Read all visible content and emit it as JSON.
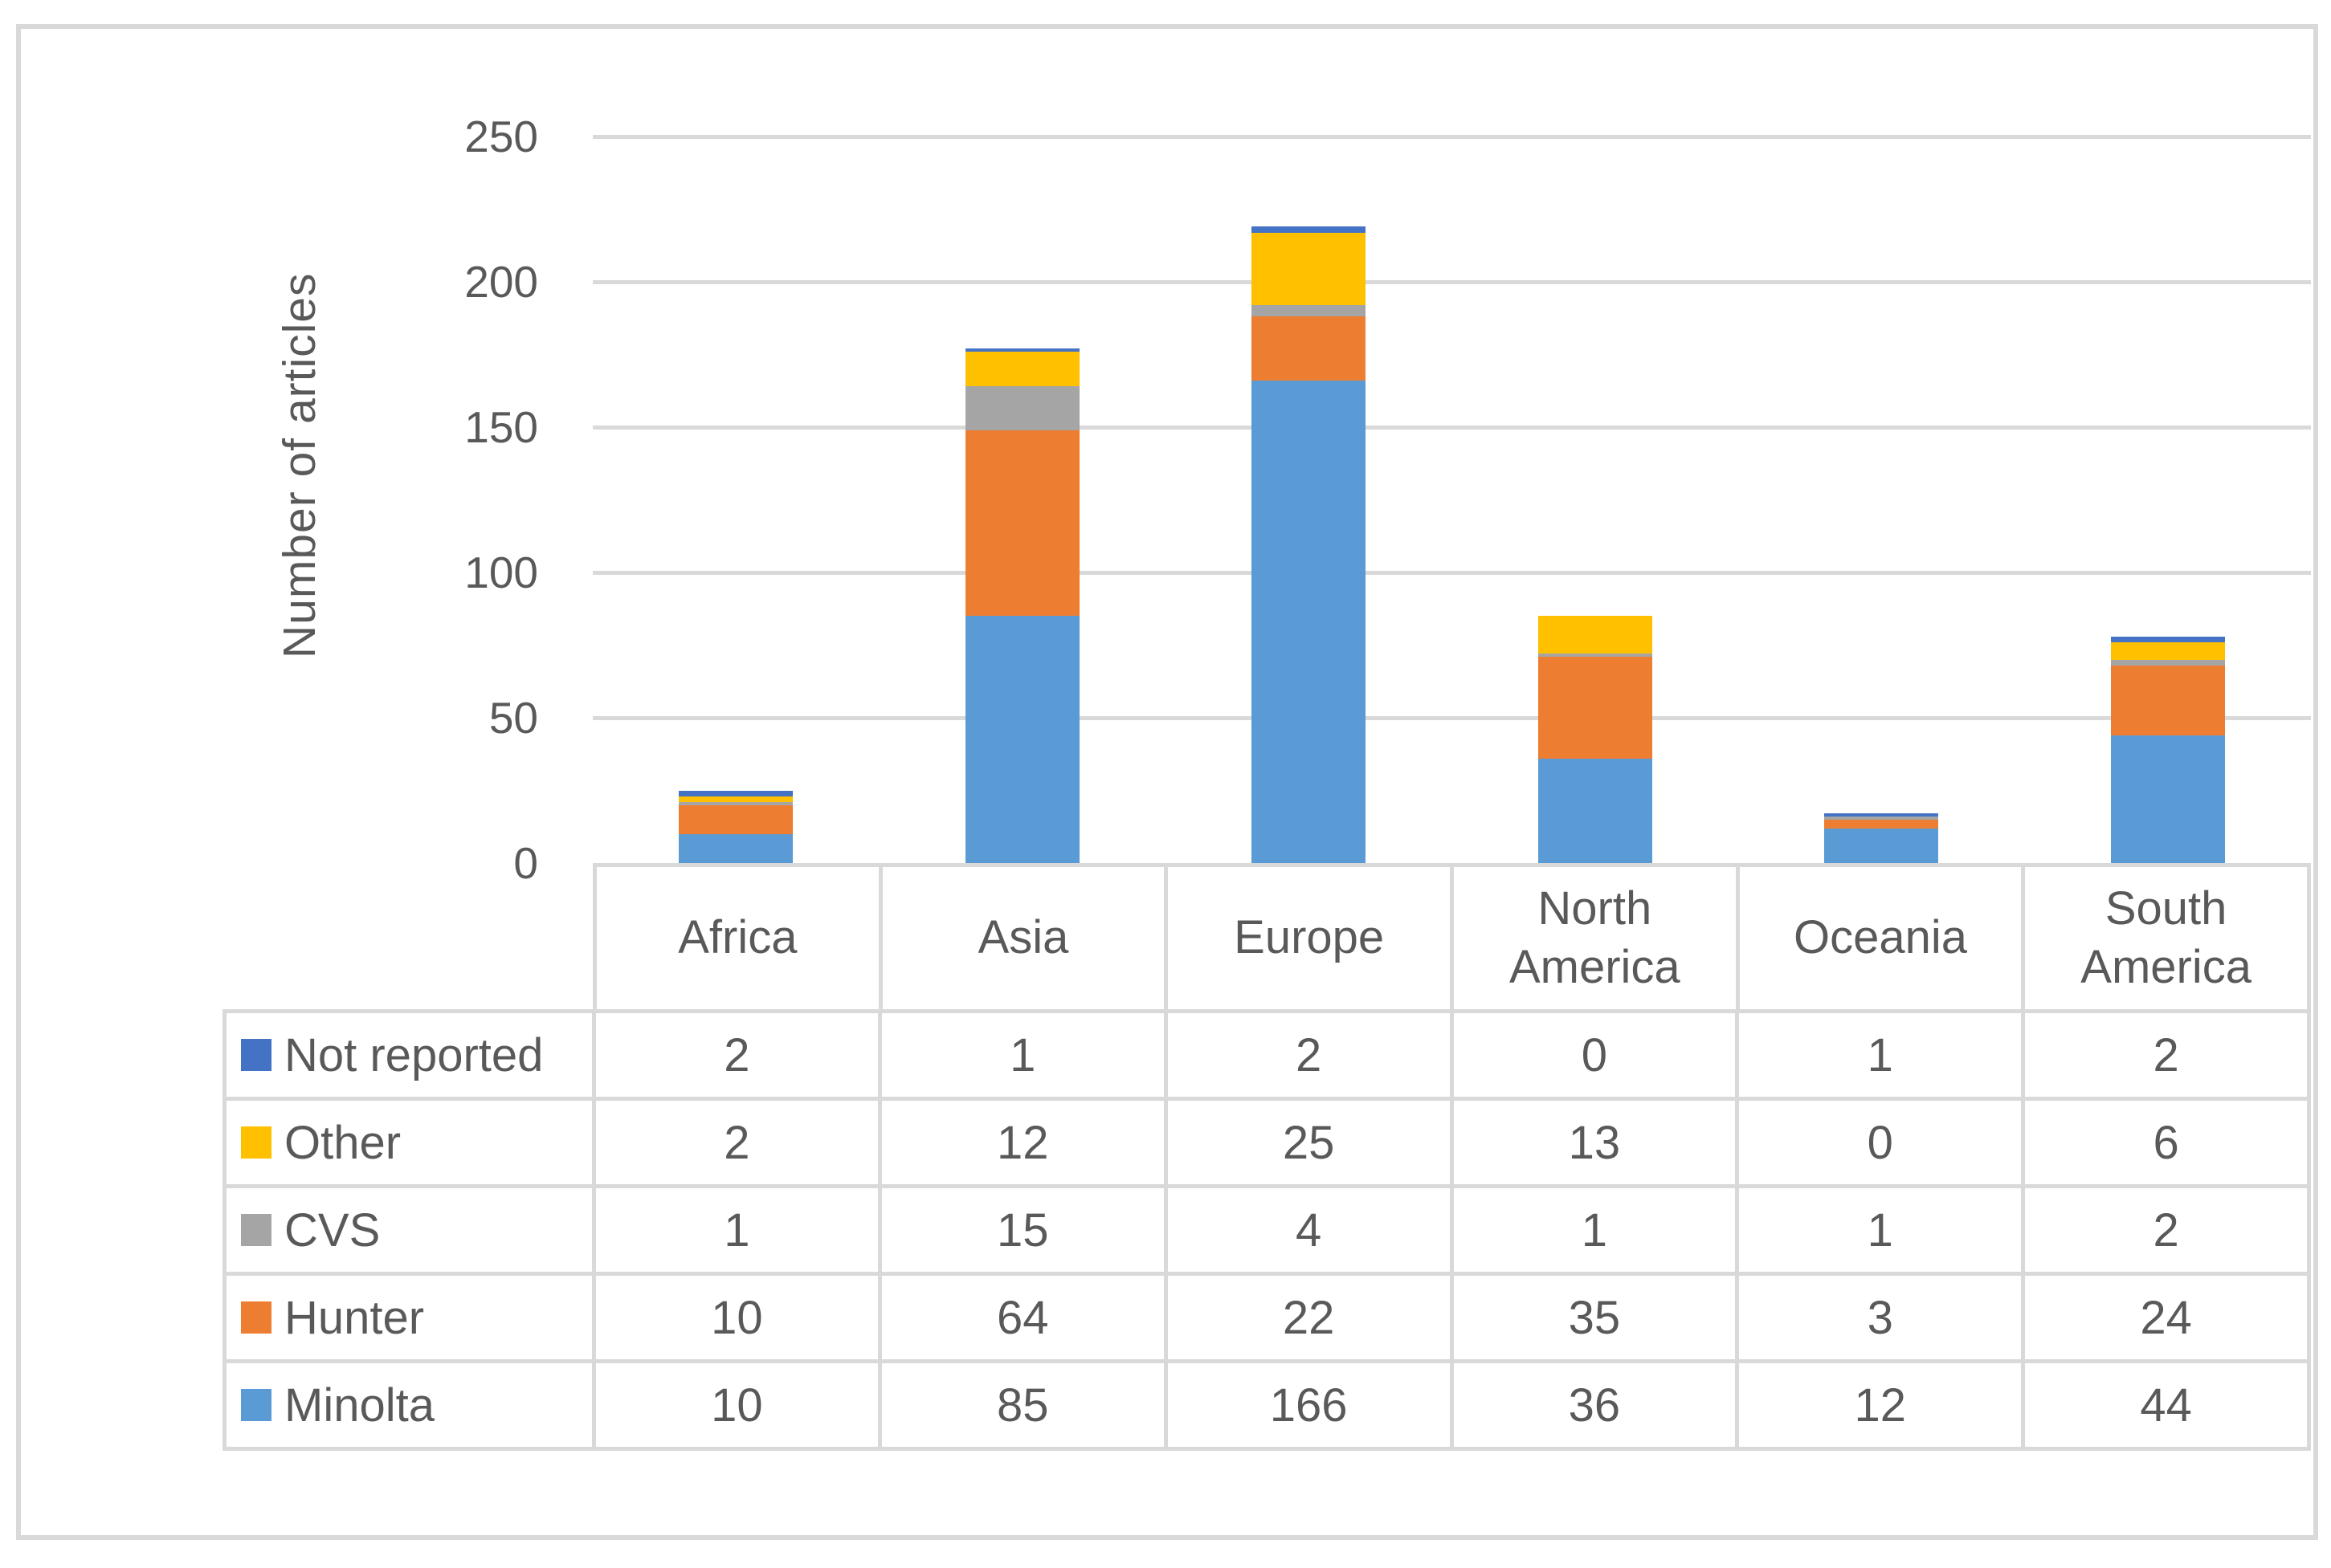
{
  "y_axis": {
    "title": "Number of articles",
    "ticks": [
      0,
      50,
      100,
      150,
      200,
      250
    ]
  },
  "chart_data": {
    "type": "bar",
    "stacked": true,
    "title": "",
    "xlabel": "",
    "ylabel": "Number of articles",
    "ylim": [
      0,
      250
    ],
    "grid": true,
    "legend_position": "data-table-left",
    "categories": [
      "Africa",
      "Asia",
      "Europe",
      "North America",
      "Oceania",
      "South America"
    ],
    "series": [
      {
        "name": "Minolta",
        "color": "#5B9BD5",
        "values": [
          10,
          85,
          166,
          36,
          12,
          44
        ]
      },
      {
        "name": "Hunter",
        "color": "#ED7D31",
        "values": [
          10,
          64,
          22,
          35,
          3,
          24
        ]
      },
      {
        "name": "CVS",
        "color": "#A5A5A5",
        "values": [
          1,
          15,
          4,
          1,
          1,
          2
        ]
      },
      {
        "name": "Other",
        "color": "#FFC000",
        "values": [
          2,
          12,
          25,
          13,
          0,
          6
        ]
      },
      {
        "name": "Not reported",
        "color": "#4472C4",
        "values": [
          2,
          1,
          2,
          0,
          1,
          2
        ]
      }
    ],
    "table_row_order_top_to_bottom": [
      "Not reported",
      "Other",
      "CVS",
      "Hunter",
      "Minolta"
    ]
  },
  "style": {
    "grid_color": "#D9D9D9",
    "border_color": "#D9D9D9",
    "text_color": "#595959",
    "background": "#FFFFFF"
  }
}
